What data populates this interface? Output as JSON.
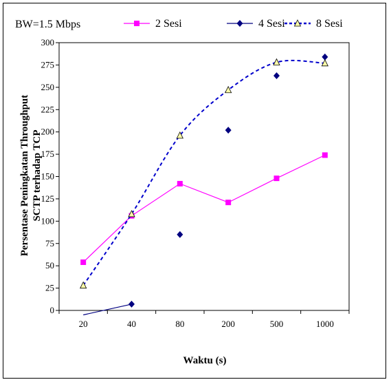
{
  "chart_data": {
    "type": "line",
    "title": "",
    "annotation": "BW=1.5 Mbps",
    "xlabel": "Waktu (s)",
    "ylabel_line1": "Persentase Peningkatan Throughput",
    "ylabel_line2": "SCTP terhadap TCP",
    "categories": [
      "20",
      "40",
      "80",
      "200",
      "500",
      "1000"
    ],
    "yticks": [
      "0",
      "25",
      "50",
      "75",
      "100",
      "125",
      "150",
      "175",
      "200",
      "225",
      "250",
      "275",
      "300"
    ],
    "ylim": [
      0,
      300
    ],
    "grid": false,
    "legend_position": "top",
    "series": [
      {
        "name": "2 Sesi",
        "color": "#ff00ff",
        "style": "solid-line-square",
        "values": [
          54,
          106,
          142,
          121,
          148,
          174
        ]
      },
      {
        "name": "4 Sesi",
        "color": "#000080",
        "style": "diamond",
        "values": [
          -5,
          7,
          85,
          202,
          263,
          284
        ]
      },
      {
        "name": "8 Sesi",
        "color": "#0000cc",
        "style": "dashed-line-triangle",
        "values": [
          28,
          108,
          196,
          247,
          278,
          277
        ]
      }
    ]
  }
}
